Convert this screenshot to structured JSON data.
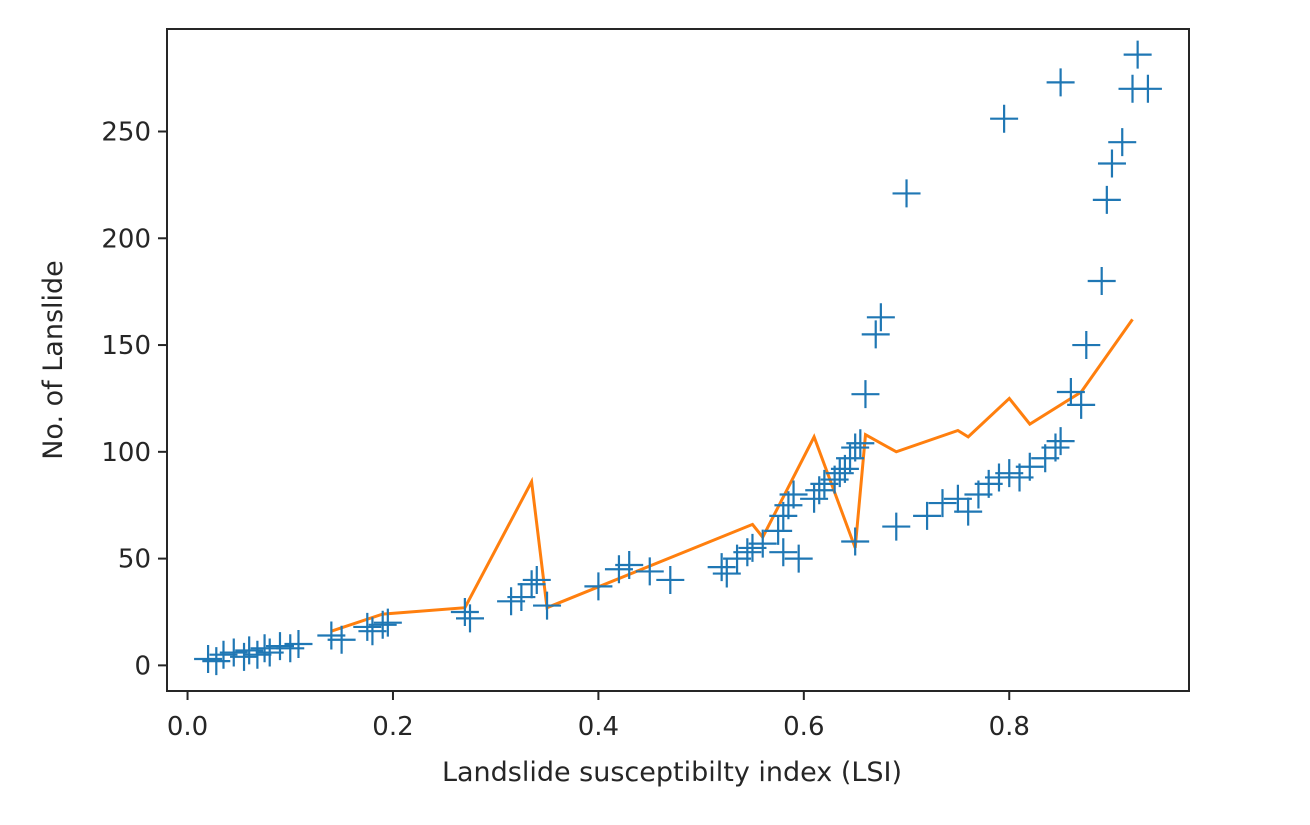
{
  "chart_data": {
    "type": "scatter",
    "title": "",
    "xlabel": "Landslide susceptibilty index (LSI)",
    "ylabel": "No. of Lanslide",
    "xlim": [
      -0.02,
      0.975
    ],
    "ylim": [
      -12,
      298
    ],
    "x_ticks": [
      0.0,
      0.2,
      0.4,
      0.6,
      0.8
    ],
    "x_tick_labels": [
      "0.0",
      "0.2",
      "0.4",
      "0.6",
      "0.8"
    ],
    "y_ticks": [
      0,
      50,
      100,
      150,
      200,
      250
    ],
    "y_tick_labels": [
      "0",
      "50",
      "100",
      "150",
      "200",
      "250"
    ],
    "grid": false,
    "legend": null,
    "colors": {
      "scatter": "#1f77b4",
      "line": "#ff7f0e",
      "axes": "#262626"
    },
    "series": [
      {
        "kind": "scatter",
        "marker": "plus",
        "color": "#1f77b4",
        "points": [
          [
            0.02,
            3
          ],
          [
            0.028,
            2
          ],
          [
            0.035,
            5
          ],
          [
            0.045,
            6
          ],
          [
            0.055,
            4
          ],
          [
            0.06,
            7
          ],
          [
            0.068,
            5
          ],
          [
            0.075,
            8
          ],
          [
            0.08,
            6
          ],
          [
            0.09,
            9
          ],
          [
            0.1,
            8
          ],
          [
            0.108,
            10
          ],
          [
            0.14,
            14
          ],
          [
            0.15,
            12
          ],
          [
            0.175,
            18
          ],
          [
            0.18,
            16
          ],
          [
            0.19,
            19
          ],
          [
            0.195,
            20
          ],
          [
            0.27,
            25
          ],
          [
            0.275,
            22
          ],
          [
            0.315,
            30
          ],
          [
            0.325,
            32
          ],
          [
            0.335,
            38
          ],
          [
            0.34,
            40
          ],
          [
            0.35,
            28
          ],
          [
            0.4,
            37
          ],
          [
            0.42,
            45
          ],
          [
            0.43,
            47
          ],
          [
            0.45,
            44
          ],
          [
            0.47,
            40
          ],
          [
            0.52,
            46
          ],
          [
            0.525,
            43
          ],
          [
            0.535,
            50
          ],
          [
            0.545,
            53
          ],
          [
            0.55,
            55
          ],
          [
            0.56,
            57
          ],
          [
            0.575,
            63
          ],
          [
            0.58,
            70
          ],
          [
            0.585,
            75
          ],
          [
            0.59,
            80
          ],
          [
            0.58,
            53
          ],
          [
            0.595,
            50
          ],
          [
            0.61,
            78
          ],
          [
            0.615,
            82
          ],
          [
            0.62,
            85
          ],
          [
            0.63,
            87
          ],
          [
            0.635,
            90
          ],
          [
            0.64,
            92
          ],
          [
            0.645,
            97
          ],
          [
            0.65,
            102
          ],
          [
            0.655,
            104
          ],
          [
            0.65,
            58
          ],
          [
            0.66,
            127
          ],
          [
            0.67,
            155
          ],
          [
            0.675,
            163
          ],
          [
            0.69,
            65
          ],
          [
            0.7,
            221
          ],
          [
            0.72,
            70
          ],
          [
            0.735,
            76
          ],
          [
            0.75,
            78
          ],
          [
            0.76,
            72
          ],
          [
            0.77,
            80
          ],
          [
            0.78,
            85
          ],
          [
            0.79,
            88
          ],
          [
            0.795,
            256
          ],
          [
            0.8,
            90
          ],
          [
            0.81,
            88
          ],
          [
            0.82,
            93
          ],
          [
            0.835,
            97
          ],
          [
            0.845,
            102
          ],
          [
            0.85,
            105
          ],
          [
            0.85,
            273
          ],
          [
            0.86,
            128
          ],
          [
            0.87,
            122
          ],
          [
            0.875,
            150
          ],
          [
            0.89,
            180
          ],
          [
            0.895,
            218
          ],
          [
            0.9,
            235
          ],
          [
            0.91,
            245
          ],
          [
            0.92,
            270
          ],
          [
            0.925,
            286
          ],
          [
            0.935,
            270
          ]
        ]
      },
      {
        "kind": "line",
        "color": "#ff7f0e",
        "points": [
          [
            0.14,
            16
          ],
          [
            0.19,
            24
          ],
          [
            0.27,
            27
          ],
          [
            0.335,
            86
          ],
          [
            0.35,
            27
          ],
          [
            0.55,
            66
          ],
          [
            0.56,
            60
          ],
          [
            0.61,
            107
          ],
          [
            0.65,
            55
          ],
          [
            0.66,
            108
          ],
          [
            0.69,
            100
          ],
          [
            0.75,
            110
          ],
          [
            0.76,
            107
          ],
          [
            0.8,
            125
          ],
          [
            0.82,
            113
          ],
          [
            0.87,
            128
          ],
          [
            0.92,
            162
          ]
        ]
      }
    ]
  }
}
